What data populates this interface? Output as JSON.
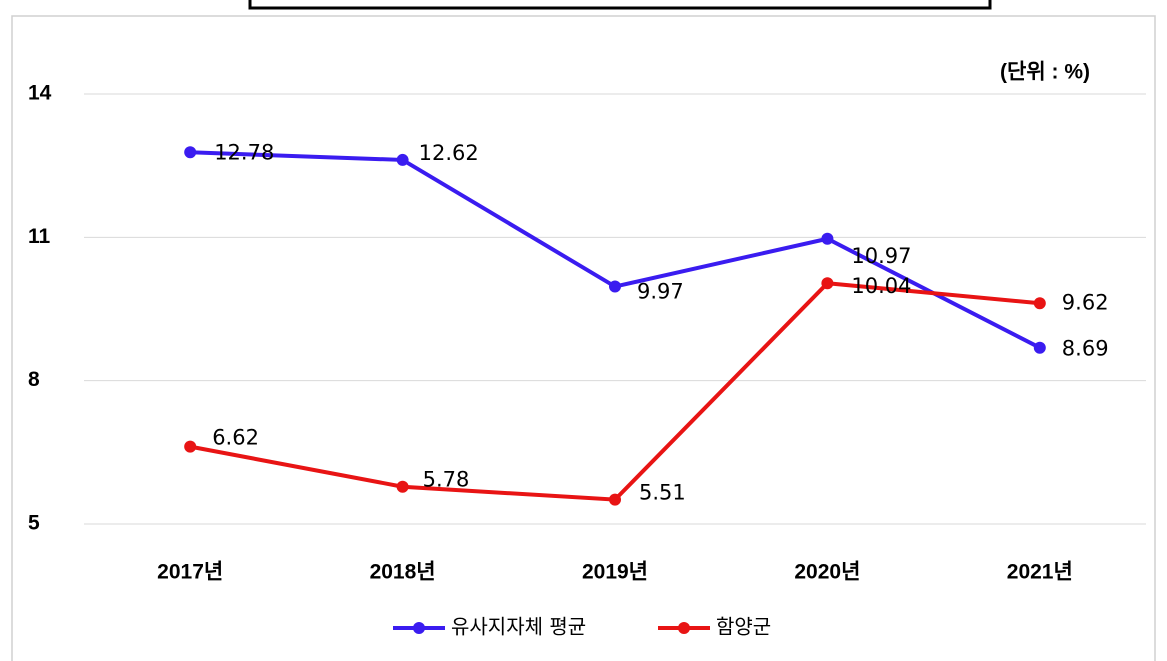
{
  "chart_data": {
    "type": "line",
    "annotation": "(단위 : %)",
    "categories": [
      "2017년",
      "2018년",
      "2019년",
      "2020년",
      "2021년"
    ],
    "series": [
      {
        "name": "유사지자체 평균",
        "color": "#3a1cf0",
        "values": [
          12.78,
          12.62,
          9.97,
          10.97,
          8.69
        ]
      },
      {
        "name": "함양군",
        "color": "#e81414",
        "values": [
          6.62,
          5.78,
          5.51,
          10.04,
          9.62
        ]
      }
    ],
    "ylim": [
      5,
      14
    ],
    "yticks": [
      5,
      8,
      11,
      14
    ],
    "grid": true,
    "legend": "bottom"
  }
}
